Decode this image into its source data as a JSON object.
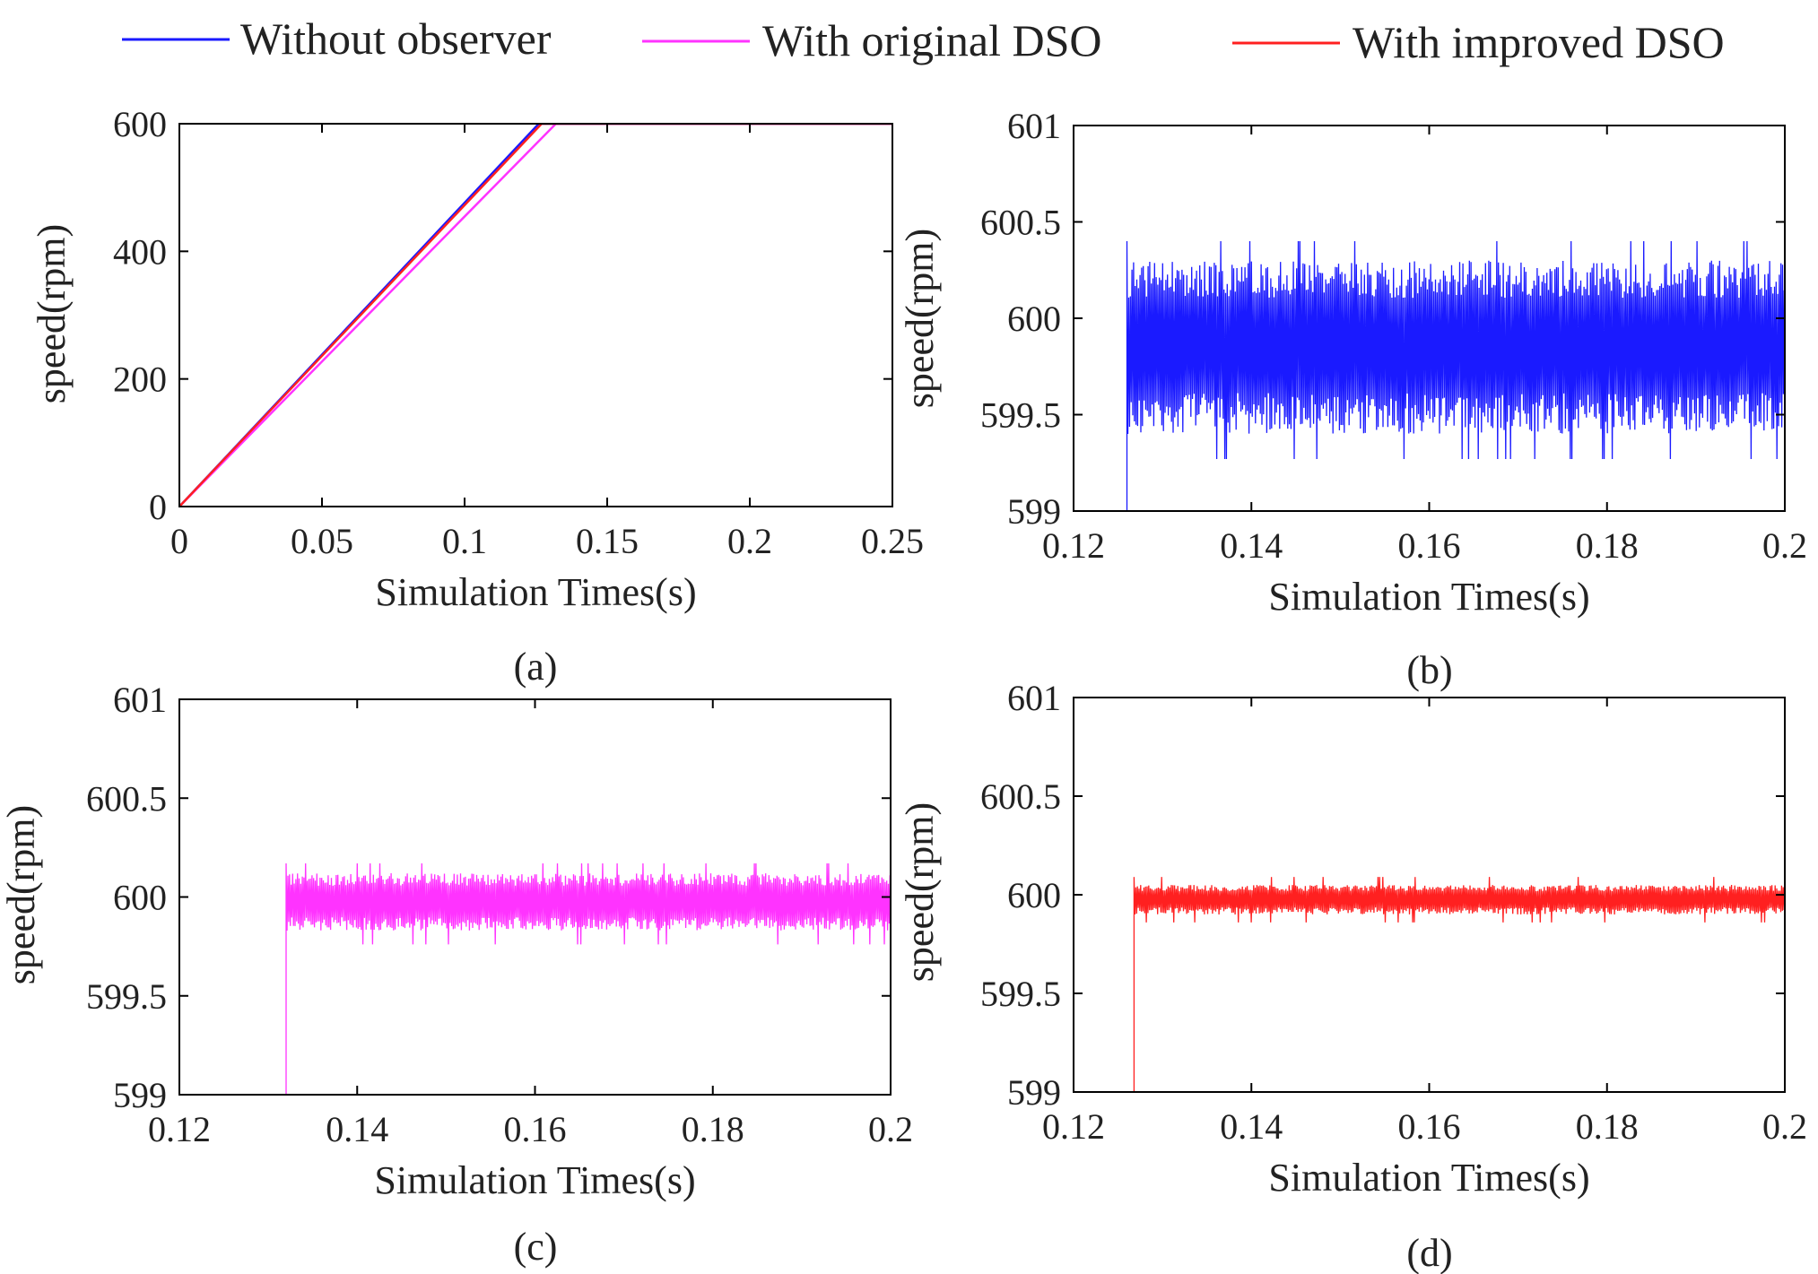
{
  "legend": [
    {
      "label": "Without observer",
      "color": "#1a1aff"
    },
    {
      "label": "With original DSO",
      "color": "#ff33ff"
    },
    {
      "label": "With improved DSO",
      "color": "#ff2020"
    }
  ],
  "chart_data": [
    {
      "type": "line",
      "caption": "(a)",
      "xlabel": "Simulation Times(s)",
      "ylabel": "speed(rpm)",
      "xlim": [
        0,
        0.25
      ],
      "ylim": [
        0,
        600
      ],
      "xticks": [
        0,
        0.05,
        0.1,
        0.15,
        0.2,
        0.25
      ],
      "xtick_labels": [
        "0",
        "0.05",
        "0.1",
        "0.15",
        "0.2",
        "0.25"
      ],
      "yticks": [
        0,
        200,
        400,
        600
      ],
      "ytick_labels": [
        "0",
        "200",
        "400",
        "600"
      ],
      "series": [
        {
          "name": "Without observer",
          "color": "#1a1aff",
          "x": [
            0,
            0.126,
            0.25
          ],
          "y": [
            0,
            600,
            600
          ]
        },
        {
          "name": "With original DSO",
          "color": "#ff33ff",
          "x": [
            0,
            0.132,
            0.25
          ],
          "y": [
            0,
            600,
            600
          ]
        },
        {
          "name": "With improved DSO",
          "color": "#ff2020",
          "x": [
            0,
            0.127,
            0.25
          ],
          "y": [
            0,
            600,
            600
          ]
        }
      ]
    },
    {
      "type": "line",
      "caption": "(b)",
      "xlabel": "Simulation Times(s)",
      "ylabel": "speed(rpm)",
      "xlim": [
        0.12,
        0.2
      ],
      "ylim": [
        599,
        601
      ],
      "xticks": [
        0.12,
        0.14,
        0.16,
        0.18,
        0.2
      ],
      "xtick_labels": [
        "0.12",
        "0.14",
        "0.16",
        "0.18",
        "0.2"
      ],
      "yticks": [
        599,
        599.5,
        600,
        600.5,
        601
      ],
      "ytick_labels": [
        "599",
        "599.5",
        "600",
        "600.5",
        "601"
      ],
      "series": [
        {
          "name": "Without observer",
          "color": "#1a1aff",
          "start": 0.126,
          "end": 0.2,
          "center": 599.87,
          "band_low": 599.4,
          "band_high": 600.3,
          "peak_low": 599.27,
          "peak_high": 600.4
        }
      ]
    },
    {
      "type": "line",
      "caption": "(c)",
      "xlabel": "Simulation Times(s)",
      "ylabel": "speed(rpm)",
      "xlim": [
        0.12,
        0.2
      ],
      "ylim": [
        599,
        601
      ],
      "xticks": [
        0.12,
        0.14,
        0.16,
        0.18,
        0.2
      ],
      "xtick_labels": [
        "0.12",
        "0.14",
        "0.16",
        "0.18",
        "0.2"
      ],
      "yticks": [
        599,
        599.5,
        600,
        600.5,
        601
      ],
      "ytick_labels": [
        "599",
        "599.5",
        "600",
        "600.5",
        "601"
      ],
      "series": [
        {
          "name": "With original DSO",
          "color": "#ff33ff",
          "start": 0.132,
          "end": 0.2,
          "center": 599.98,
          "band_low": 599.83,
          "band_high": 600.12,
          "peak_low": 599.76,
          "peak_high": 600.17
        }
      ]
    },
    {
      "type": "line",
      "caption": "(d)",
      "xlabel": "Simulation Times(s)",
      "ylabel": "speed(rpm)",
      "xlim": [
        0.12,
        0.2
      ],
      "ylim": [
        599,
        601
      ],
      "xticks": [
        0.12,
        0.14,
        0.16,
        0.18,
        0.2
      ],
      "xtick_labels": [
        "0.12",
        "0.14",
        "0.16",
        "0.18",
        "0.2"
      ],
      "yticks": [
        599,
        599.5,
        600,
        600.5,
        601
      ],
      "ytick_labels": [
        "599",
        "599.5",
        "600",
        "600.5",
        "601"
      ],
      "series": [
        {
          "name": "With improved DSO",
          "color": "#ff2020",
          "start": 0.1268,
          "end": 0.2,
          "center": 599.98,
          "band_low": 599.9,
          "band_high": 600.05,
          "peak_low": 599.86,
          "peak_high": 600.09
        }
      ]
    }
  ]
}
